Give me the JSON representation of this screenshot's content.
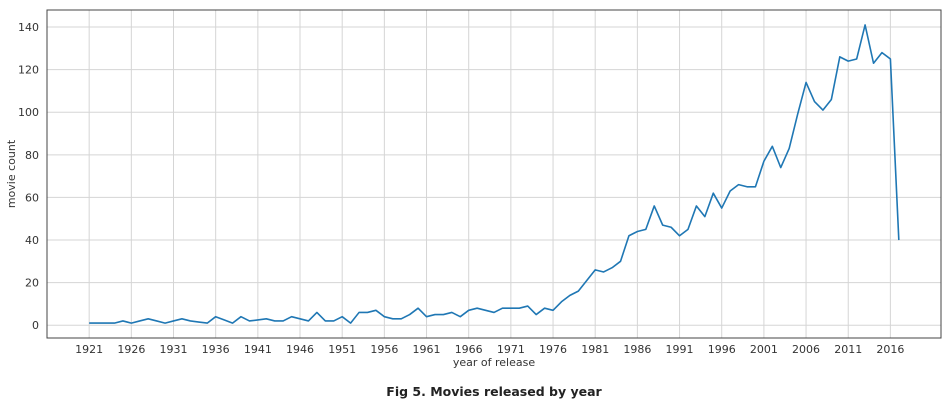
{
  "caption": "Fig 5. Movies released by year",
  "chart_data": {
    "type": "line",
    "title": "",
    "xlabel": "year of release",
    "ylabel": "movie count",
    "xlim": [
      1916,
      2022
    ],
    "ylim": [
      -6,
      148
    ],
    "x_ticks": [
      1921,
      1926,
      1931,
      1936,
      1941,
      1946,
      1951,
      1956,
      1961,
      1966,
      1971,
      1976,
      1981,
      1986,
      1991,
      1996,
      2001,
      2006,
      2011,
      2016
    ],
    "y_ticks": [
      0,
      20,
      40,
      60,
      80,
      100,
      120,
      140
    ],
    "grid": true,
    "line_color": "#1f77b4",
    "series": [
      {
        "x": [
          1921,
          1922,
          1923,
          1924,
          1925,
          1926,
          1927,
          1928,
          1929,
          1930,
          1931,
          1932,
          1933,
          1934,
          1935,
          1936,
          1937,
          1938,
          1939,
          1940,
          1941,
          1942,
          1943,
          1944,
          1945,
          1946,
          1947,
          1948,
          1949,
          1950,
          1951,
          1952,
          1953,
          1954,
          1955,
          1956,
          1957,
          1958,
          1959,
          1960,
          1961,
          1962,
          1963,
          1964,
          1965,
          1966,
          1967,
          1968,
          1969,
          1970,
          1971,
          1972,
          1973,
          1974,
          1975,
          1976,
          1977,
          1978,
          1979,
          1980,
          1981,
          1982,
          1983,
          1984,
          1985,
          1986,
          1987,
          1988,
          1989,
          1990,
          1991,
          1992,
          1993,
          1994,
          1995,
          1996,
          1997,
          1998,
          1999,
          2000,
          2001,
          2002,
          2003,
          2004,
          2005,
          2006,
          2007,
          2008,
          2009,
          2010,
          2011,
          2012,
          2013,
          2014,
          2015,
          2016,
          2017
        ],
        "values": [
          1,
          1,
          1,
          1,
          2,
          1,
          2,
          3,
          2,
          1,
          2,
          3,
          2,
          1.5,
          1,
          4,
          2.5,
          1,
          4,
          2,
          2.5,
          3,
          2,
          2,
          4,
          3,
          2,
          6,
          2,
          2,
          4,
          1,
          6,
          6,
          7,
          4,
          3,
          3,
          5,
          8,
          4,
          5,
          5,
          6,
          4,
          7,
          8,
          7,
          6,
          8,
          8,
          8,
          9,
          5,
          8,
          7,
          11,
          14,
          16,
          21,
          26,
          25,
          27,
          30,
          42,
          44,
          45,
          56,
          47,
          46,
          42,
          45,
          56,
          51,
          62,
          55,
          63,
          66,
          65,
          65,
          77,
          84,
          74,
          83,
          99,
          114,
          105,
          101,
          106,
          126,
          124,
          125,
          141,
          123,
          128,
          125,
          40
        ]
      }
    ]
  }
}
